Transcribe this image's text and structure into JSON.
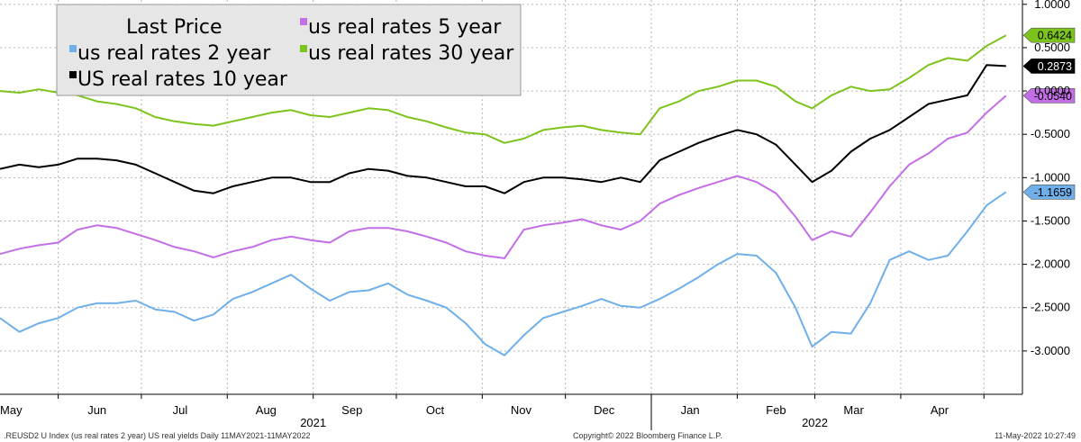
{
  "chart_data": {
    "type": "line",
    "legend_title": "Last Price",
    "legend_placement": "top-left",
    "grid": true,
    "ylim": [
      -3.5,
      1.05
    ],
    "y_ticks": [
      1.0,
      0.5,
      0.0,
      -0.5,
      -1.0,
      -1.5,
      -2.0,
      -2.5,
      -3.0
    ],
    "y_tick_labels": [
      "1.0000",
      "0.5000",
      "0.0000",
      "-0.5000",
      "-1.0000",
      "-1.5000",
      "-2.0000",
      "-2.5000",
      "-3.0000"
    ],
    "x_start": "2021-05-11",
    "x_end": "2022-05-11",
    "x_month_ticks": [
      {
        "label": "May",
        "date": "2021-05-15"
      },
      {
        "label": "Jun",
        "date": "2021-06-15"
      },
      {
        "label": "Jul",
        "date": "2021-07-15"
      },
      {
        "label": "Aug",
        "date": "2021-08-15"
      },
      {
        "label": "Sep",
        "date": "2021-09-15"
      },
      {
        "label": "Oct",
        "date": "2021-10-15"
      },
      {
        "label": "Nov",
        "date": "2021-11-15"
      },
      {
        "label": "Dec",
        "date": "2021-12-15"
      },
      {
        "label": "Jan",
        "date": "2022-01-15"
      },
      {
        "label": "Feb",
        "date": "2022-02-15"
      },
      {
        "label": "Mar",
        "date": "2022-03-15"
      },
      {
        "label": "Apr",
        "date": "2022-04-15"
      }
    ],
    "x_year_labels": [
      {
        "label": "2021",
        "date": "2021-09-01"
      },
      {
        "label": "2022",
        "date": "2022-03-01"
      }
    ],
    "series": [
      {
        "name": "us real rates 2 year",
        "color": "#6fb0ea",
        "last_value_label": "-1.1659",
        "points": [
          [
            "2021-05-11",
            -2.62
          ],
          [
            "2021-05-18",
            -2.78
          ],
          [
            "2021-05-25",
            -2.68
          ],
          [
            "2021-06-01",
            -2.62
          ],
          [
            "2021-06-08",
            -2.5
          ],
          [
            "2021-06-15",
            -2.45
          ],
          [
            "2021-06-22",
            -2.45
          ],
          [
            "2021-06-29",
            -2.42
          ],
          [
            "2021-07-06",
            -2.52
          ],
          [
            "2021-07-13",
            -2.55
          ],
          [
            "2021-07-20",
            -2.65
          ],
          [
            "2021-07-27",
            -2.58
          ],
          [
            "2021-08-03",
            -2.4
          ],
          [
            "2021-08-10",
            -2.32
          ],
          [
            "2021-08-17",
            -2.22
          ],
          [
            "2021-08-24",
            -2.12
          ],
          [
            "2021-08-31",
            -2.28
          ],
          [
            "2021-09-07",
            -2.42
          ],
          [
            "2021-09-14",
            -2.32
          ],
          [
            "2021-09-21",
            -2.3
          ],
          [
            "2021-09-28",
            -2.22
          ],
          [
            "2021-10-05",
            -2.35
          ],
          [
            "2021-10-12",
            -2.42
          ],
          [
            "2021-10-19",
            -2.5
          ],
          [
            "2021-10-26",
            -2.68
          ],
          [
            "2021-11-02",
            -2.92
          ],
          [
            "2021-11-09",
            -3.05
          ],
          [
            "2021-11-16",
            -2.82
          ],
          [
            "2021-11-23",
            -2.62
          ],
          [
            "2021-11-30",
            -2.55
          ],
          [
            "2021-12-07",
            -2.48
          ],
          [
            "2021-12-14",
            -2.4
          ],
          [
            "2021-12-21",
            -2.48
          ],
          [
            "2021-12-28",
            -2.5
          ],
          [
            "2022-01-04",
            -2.4
          ],
          [
            "2022-01-11",
            -2.28
          ],
          [
            "2022-01-18",
            -2.15
          ],
          [
            "2022-01-25",
            -2.0
          ],
          [
            "2022-02-01",
            -1.88
          ],
          [
            "2022-02-08",
            -1.9
          ],
          [
            "2022-02-15",
            -2.1
          ],
          [
            "2022-02-22",
            -2.5
          ],
          [
            "2022-02-28",
            -2.95
          ],
          [
            "2022-03-07",
            -2.78
          ],
          [
            "2022-03-14",
            -2.8
          ],
          [
            "2022-03-21",
            -2.45
          ],
          [
            "2022-03-28",
            -1.95
          ],
          [
            "2022-04-04",
            -1.85
          ],
          [
            "2022-04-11",
            -1.95
          ],
          [
            "2022-04-18",
            -1.9
          ],
          [
            "2022-04-25",
            -1.62
          ],
          [
            "2022-05-02",
            -1.32
          ],
          [
            "2022-05-09",
            -1.1659
          ]
        ]
      },
      {
        "name": "us real rates 5 year",
        "color": "#c36ee6",
        "last_value_label": "-0.0540",
        "points": [
          [
            "2021-05-11",
            -1.88
          ],
          [
            "2021-05-18",
            -1.82
          ],
          [
            "2021-05-25",
            -1.78
          ],
          [
            "2021-06-01",
            -1.75
          ],
          [
            "2021-06-08",
            -1.6
          ],
          [
            "2021-06-15",
            -1.55
          ],
          [
            "2021-06-22",
            -1.58
          ],
          [
            "2021-06-29",
            -1.65
          ],
          [
            "2021-07-06",
            -1.72
          ],
          [
            "2021-07-13",
            -1.8
          ],
          [
            "2021-07-20",
            -1.85
          ],
          [
            "2021-07-27",
            -1.92
          ],
          [
            "2021-08-03",
            -1.85
          ],
          [
            "2021-08-10",
            -1.8
          ],
          [
            "2021-08-17",
            -1.72
          ],
          [
            "2021-08-24",
            -1.68
          ],
          [
            "2021-08-31",
            -1.72
          ],
          [
            "2021-09-07",
            -1.75
          ],
          [
            "2021-09-14",
            -1.62
          ],
          [
            "2021-09-21",
            -1.58
          ],
          [
            "2021-09-28",
            -1.58
          ],
          [
            "2021-10-05",
            -1.62
          ],
          [
            "2021-10-12",
            -1.68
          ],
          [
            "2021-10-19",
            -1.75
          ],
          [
            "2021-10-26",
            -1.85
          ],
          [
            "2021-11-02",
            -1.9
          ],
          [
            "2021-11-09",
            -1.93
          ],
          [
            "2021-11-16",
            -1.6
          ],
          [
            "2021-11-23",
            -1.55
          ],
          [
            "2021-11-30",
            -1.52
          ],
          [
            "2021-12-07",
            -1.48
          ],
          [
            "2021-12-14",
            -1.55
          ],
          [
            "2021-12-21",
            -1.6
          ],
          [
            "2021-12-28",
            -1.5
          ],
          [
            "2022-01-04",
            -1.3
          ],
          [
            "2022-01-11",
            -1.2
          ],
          [
            "2022-01-18",
            -1.12
          ],
          [
            "2022-01-25",
            -1.05
          ],
          [
            "2022-02-01",
            -0.98
          ],
          [
            "2022-02-08",
            -1.05
          ],
          [
            "2022-02-15",
            -1.18
          ],
          [
            "2022-02-22",
            -1.45
          ],
          [
            "2022-02-28",
            -1.72
          ],
          [
            "2022-03-07",
            -1.62
          ],
          [
            "2022-03-14",
            -1.68
          ],
          [
            "2022-03-21",
            -1.4
          ],
          [
            "2022-03-28",
            -1.1
          ],
          [
            "2022-04-04",
            -0.85
          ],
          [
            "2022-04-11",
            -0.72
          ],
          [
            "2022-04-18",
            -0.55
          ],
          [
            "2022-04-25",
            -0.48
          ],
          [
            "2022-05-02",
            -0.25
          ],
          [
            "2022-05-09",
            -0.054
          ]
        ]
      },
      {
        "name": "us real rates 30 year",
        "color": "#7cc41b",
        "last_value_label": "0.6424",
        "points": [
          [
            "2021-05-11",
            0.0
          ],
          [
            "2021-05-18",
            -0.02
          ],
          [
            "2021-05-25",
            0.02
          ],
          [
            "2021-06-01",
            -0.02
          ],
          [
            "2021-06-08",
            -0.05
          ],
          [
            "2021-06-15",
            -0.12
          ],
          [
            "2021-06-22",
            -0.15
          ],
          [
            "2021-06-29",
            -0.2
          ],
          [
            "2021-07-06",
            -0.3
          ],
          [
            "2021-07-13",
            -0.35
          ],
          [
            "2021-07-20",
            -0.38
          ],
          [
            "2021-07-27",
            -0.4
          ],
          [
            "2021-08-03",
            -0.35
          ],
          [
            "2021-08-10",
            -0.3
          ],
          [
            "2021-08-17",
            -0.25
          ],
          [
            "2021-08-24",
            -0.22
          ],
          [
            "2021-08-31",
            -0.28
          ],
          [
            "2021-09-07",
            -0.3
          ],
          [
            "2021-09-14",
            -0.25
          ],
          [
            "2021-09-21",
            -0.2
          ],
          [
            "2021-09-28",
            -0.22
          ],
          [
            "2021-10-05",
            -0.3
          ],
          [
            "2021-10-12",
            -0.35
          ],
          [
            "2021-10-19",
            -0.42
          ],
          [
            "2021-10-26",
            -0.48
          ],
          [
            "2021-11-02",
            -0.5
          ],
          [
            "2021-11-09",
            -0.6
          ],
          [
            "2021-11-16",
            -0.55
          ],
          [
            "2021-11-23",
            -0.45
          ],
          [
            "2021-11-30",
            -0.42
          ],
          [
            "2021-12-07",
            -0.4
          ],
          [
            "2021-12-14",
            -0.45
          ],
          [
            "2021-12-21",
            -0.48
          ],
          [
            "2021-12-28",
            -0.5
          ],
          [
            "2022-01-04",
            -0.2
          ],
          [
            "2022-01-11",
            -0.12
          ],
          [
            "2022-01-18",
            0.0
          ],
          [
            "2022-01-25",
            0.05
          ],
          [
            "2022-02-01",
            0.12
          ],
          [
            "2022-02-08",
            0.12
          ],
          [
            "2022-02-15",
            0.05
          ],
          [
            "2022-02-22",
            -0.12
          ],
          [
            "2022-02-28",
            -0.2
          ],
          [
            "2022-03-07",
            -0.05
          ],
          [
            "2022-03-14",
            0.05
          ],
          [
            "2022-03-21",
            0.0
          ],
          [
            "2022-03-28",
            0.02
          ],
          [
            "2022-04-04",
            0.15
          ],
          [
            "2022-04-11",
            0.3
          ],
          [
            "2022-04-18",
            0.38
          ],
          [
            "2022-04-25",
            0.35
          ],
          [
            "2022-05-02",
            0.52
          ],
          [
            "2022-05-09",
            0.6424
          ]
        ]
      },
      {
        "name": "US real rates 10 year",
        "color": "#000000",
        "last_value_label": "0.2873",
        "points": [
          [
            "2021-05-11",
            -0.9
          ],
          [
            "2021-05-18",
            -0.85
          ],
          [
            "2021-05-25",
            -0.88
          ],
          [
            "2021-06-01",
            -0.85
          ],
          [
            "2021-06-08",
            -0.78
          ],
          [
            "2021-06-15",
            -0.78
          ],
          [
            "2021-06-22",
            -0.8
          ],
          [
            "2021-06-29",
            -0.85
          ],
          [
            "2021-07-06",
            -0.95
          ],
          [
            "2021-07-13",
            -1.05
          ],
          [
            "2021-07-20",
            -1.15
          ],
          [
            "2021-07-27",
            -1.18
          ],
          [
            "2021-08-03",
            -1.1
          ],
          [
            "2021-08-10",
            -1.05
          ],
          [
            "2021-08-17",
            -1.0
          ],
          [
            "2021-08-24",
            -1.0
          ],
          [
            "2021-08-31",
            -1.05
          ],
          [
            "2021-09-07",
            -1.05
          ],
          [
            "2021-09-14",
            -0.95
          ],
          [
            "2021-09-21",
            -0.9
          ],
          [
            "2021-09-28",
            -0.92
          ],
          [
            "2021-10-05",
            -0.98
          ],
          [
            "2021-10-12",
            -1.0
          ],
          [
            "2021-10-19",
            -1.05
          ],
          [
            "2021-10-26",
            -1.1
          ],
          [
            "2021-11-02",
            -1.1
          ],
          [
            "2021-11-09",
            -1.18
          ],
          [
            "2021-11-16",
            -1.05
          ],
          [
            "2021-11-23",
            -1.0
          ],
          [
            "2021-11-30",
            -1.0
          ],
          [
            "2021-12-07",
            -1.02
          ],
          [
            "2021-12-14",
            -1.05
          ],
          [
            "2021-12-21",
            -1.0
          ],
          [
            "2021-12-28",
            -1.05
          ],
          [
            "2022-01-04",
            -0.8
          ],
          [
            "2022-01-11",
            -0.7
          ],
          [
            "2022-01-18",
            -0.6
          ],
          [
            "2022-01-25",
            -0.52
          ],
          [
            "2022-02-01",
            -0.45
          ],
          [
            "2022-02-08",
            -0.5
          ],
          [
            "2022-02-15",
            -0.62
          ],
          [
            "2022-02-22",
            -0.85
          ],
          [
            "2022-02-28",
            -1.05
          ],
          [
            "2022-03-07",
            -0.92
          ],
          [
            "2022-03-14",
            -0.7
          ],
          [
            "2022-03-21",
            -0.55
          ],
          [
            "2022-03-28",
            -0.45
          ],
          [
            "2022-04-04",
            -0.3
          ],
          [
            "2022-04-11",
            -0.15
          ],
          [
            "2022-04-18",
            -0.1
          ],
          [
            "2022-04-25",
            -0.05
          ],
          [
            "2022-05-02",
            0.3
          ],
          [
            "2022-05-09",
            0.2873
          ]
        ]
      }
    ]
  },
  "footer": {
    "left": ".REUSD2 U Index (us real rates 2 year) US real yields  Daily 11MAY2021-11MAY2022",
    "center": "Copyright© 2022 Bloomberg Finance L.P.",
    "right": "11-May-2022 10:27:49"
  }
}
